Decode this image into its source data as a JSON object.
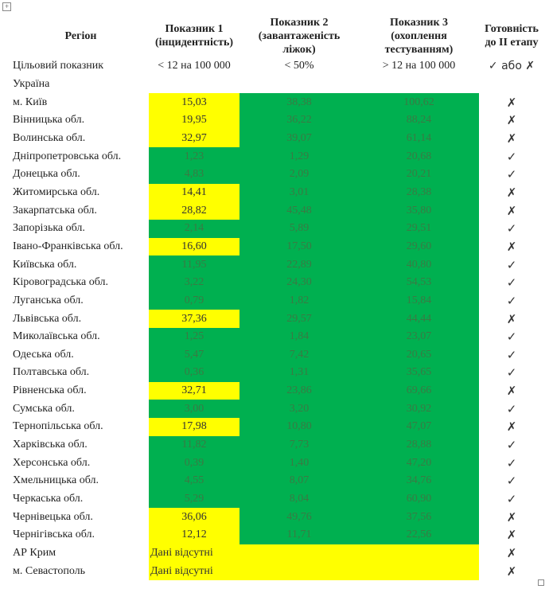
{
  "headers": [
    "Регіон",
    "Показник 1 (інцидентність)",
    "Показник 2 (завантаженість ліжок)",
    "Показник 3 (охоплення тестуванням)",
    "Готовність до ІІ етапу"
  ],
  "header_lines": [
    [
      "Регіон"
    ],
    [
      "Показник 1",
      "(інцидентність)"
    ],
    [
      "Показник 2",
      "(завантаженість",
      "ліжок)"
    ],
    [
      "Показник 3",
      "(охоплення",
      "тестуванням)"
    ],
    [
      "Готовність",
      "до ІІ етапу"
    ]
  ],
  "target": {
    "label": "Цільовий показник",
    "p1": "< 12 на 100 000",
    "p2": "< 50%",
    "p3": "> 12 на 100 000",
    "ready": "✓ або ✗"
  },
  "country": "Україна",
  "colors": {
    "green": "#00b050",
    "yellow": "#ffff00"
  },
  "rows": [
    {
      "region": "м. Київ",
      "p1": "15,03",
      "p2": "38,38",
      "p3": "100,62",
      "ready": "✗",
      "p1_ok": false
    },
    {
      "region": "Вінницька обл.",
      "p1": "19,95",
      "p2": "36,22",
      "p3": "88,24",
      "ready": "✗",
      "p1_ok": false
    },
    {
      "region": "Волинська обл.",
      "p1": "32,97",
      "p2": "39,07",
      "p3": "61,14",
      "ready": "✗",
      "p1_ok": false
    },
    {
      "region": "Дніпропетровська обл.",
      "p1": "1,23",
      "p2": "1,29",
      "p3": "20,68",
      "ready": "✓",
      "p1_ok": true
    },
    {
      "region": "Донецька обл.",
      "p1": "4,83",
      "p2": "2,09",
      "p3": "20,21",
      "ready": "✓",
      "p1_ok": true
    },
    {
      "region": "Житомирська обл.",
      "p1": "14,41",
      "p2": "3,01",
      "p3": "28,38",
      "ready": "✗",
      "p1_ok": false
    },
    {
      "region": "Закарпатська обл.",
      "p1": "28,82",
      "p2": "45,48",
      "p3": "35,80",
      "ready": "✗",
      "p1_ok": false
    },
    {
      "region": "Запорізька обл.",
      "p1": "2,14",
      "p2": "5,89",
      "p3": "29,51",
      "ready": "✓",
      "p1_ok": true
    },
    {
      "region": "Івано-Франківська обл.",
      "p1": "16,60",
      "p2": "17,50",
      "p3": "29,60",
      "ready": "✗",
      "p1_ok": false
    },
    {
      "region": "Київська обл.",
      "p1": "11,95",
      "p2": "22,89",
      "p3": "40,80",
      "ready": "✓",
      "p1_ok": true
    },
    {
      "region": "Кіровоградська обл.",
      "p1": "3,22",
      "p2": "24,30",
      "p3": "54,53",
      "ready": "✓",
      "p1_ok": true
    },
    {
      "region": "Луганська обл.",
      "p1": "0,79",
      "p2": "1,82",
      "p3": "15,84",
      "ready": "✓",
      "p1_ok": true
    },
    {
      "region": "Львівська обл.",
      "p1": "37,36",
      "p2": "29,57",
      "p3": "44,44",
      "ready": "✗",
      "p1_ok": false
    },
    {
      "region": "Миколаївська обл.",
      "p1": "1,25",
      "p2": "1,84",
      "p3": "23,07",
      "ready": "✓",
      "p1_ok": true
    },
    {
      "region": "Одеська обл.",
      "p1": "5,47",
      "p2": "7,42",
      "p3": "20,65",
      "ready": "✓",
      "p1_ok": true
    },
    {
      "region": "Полтавська обл.",
      "p1": "0,36",
      "p2": "1,31",
      "p3": "35,65",
      "ready": "✓",
      "p1_ok": true
    },
    {
      "region": "Рівненська обл.",
      "p1": "32,71",
      "p2": "23,86",
      "p3": "69,66",
      "ready": "✗",
      "p1_ok": false
    },
    {
      "region": "Сумська обл.",
      "p1": "3,00",
      "p2": "3,20",
      "p3": "30,92",
      "ready": "✓",
      "p1_ok": true
    },
    {
      "region": "Тернопільська обл.",
      "p1": "17,98",
      "p2": "10,80",
      "p3": "47,07",
      "ready": "✗",
      "p1_ok": false
    },
    {
      "region": "Харківська обл.",
      "p1": "11,82",
      "p2": "7,73",
      "p3": "28,88",
      "ready": "✓",
      "p1_ok": true
    },
    {
      "region": "Херсонська обл.",
      "p1": "0,39",
      "p2": "1,40",
      "p3": "47,20",
      "ready": "✓",
      "p1_ok": true
    },
    {
      "region": "Хмельницька обл.",
      "p1": "4,55",
      "p2": "8,07",
      "p3": "34,76",
      "ready": "✓",
      "p1_ok": true
    },
    {
      "region": "Черкаська обл.",
      "p1": "5,29",
      "p2": "8,04",
      "p3": "60,90",
      "ready": "✓",
      "p1_ok": true
    },
    {
      "region": "Чернівецька обл.",
      "p1": "36,06",
      "p2": "49,76",
      "p3": "37,56",
      "ready": "✗",
      "p1_ok": false
    },
    {
      "region": "Чернігівська обл.",
      "p1": "12,12",
      "p2": "11,71",
      "p3": "22,56",
      "ready": "✗",
      "p1_ok": false
    }
  ],
  "no_data_rows": [
    {
      "region": "АР Крим",
      "text": "Дані відсутні",
      "ready": "✗"
    },
    {
      "region": "м. Севастополь",
      "text": "Дані відсутні",
      "ready": "✗"
    }
  ],
  "table_move_icon": "move-icon",
  "move_glyph": "+"
}
